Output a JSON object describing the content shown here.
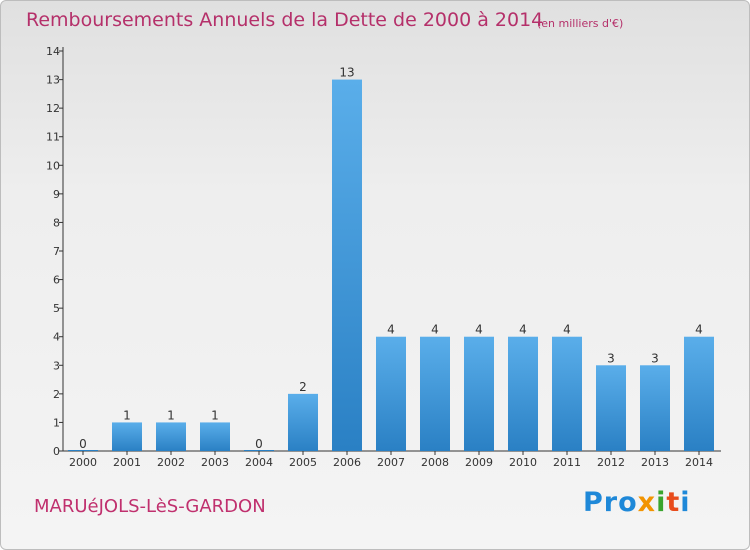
{
  "title": "Remboursements Annuels de la Dette de 2000 à 2014",
  "unit": "(en milliers d'€)",
  "commune": "MARUéJOLS-LèS-GARDON",
  "logo": [
    "Pro",
    "x",
    "i",
    "t",
    "i"
  ],
  "colors": {
    "title": "#b5306a",
    "bar_light": "#5aaeea",
    "bar_dark": "#2a80c4"
  },
  "chart_data": {
    "type": "bar",
    "categories": [
      "2000",
      "2001",
      "2002",
      "2003",
      "2004",
      "2005",
      "2006",
      "2007",
      "2008",
      "2009",
      "2010",
      "2011",
      "2012",
      "2013",
      "2014"
    ],
    "values": [
      0,
      1,
      1,
      1,
      0,
      2,
      13,
      4,
      4,
      4,
      4,
      4,
      3,
      3,
      4
    ],
    "ylim": [
      0,
      14
    ],
    "yticks": [
      0,
      1,
      2,
      3,
      4,
      5,
      6,
      7,
      8,
      9,
      10,
      11,
      12,
      13,
      14
    ],
    "grid": false,
    "xlabel": "",
    "ylabel": ""
  }
}
